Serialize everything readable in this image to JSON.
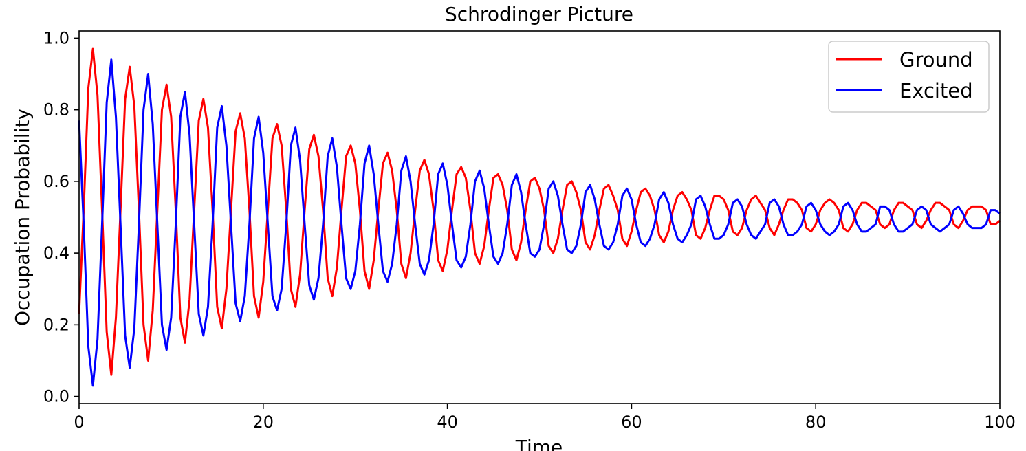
{
  "chart_data": {
    "type": "line",
    "title": "Schrodinger Picture",
    "xlabel": "Time",
    "ylabel": "Occupation Probability",
    "xlim": [
      0,
      100
    ],
    "ylim": [
      -0.02,
      1.02
    ],
    "xticks": [
      0,
      20,
      40,
      60,
      80,
      100
    ],
    "xtick_labels": [
      "0",
      "20",
      "40",
      "60",
      "80",
      "100"
    ],
    "yticks": [
      0.0,
      0.2,
      0.4,
      0.6,
      0.8,
      1.0
    ],
    "ytick_labels": [
      "0.0",
      "0.2",
      "0.4",
      "0.6",
      "0.8",
      "1.0"
    ],
    "grid": false,
    "legend_position": "top-right",
    "x": [
      0.0,
      0.5,
      1.0,
      1.5,
      2.0,
      2.5,
      3.0,
      3.5,
      4.0,
      4.5,
      5.0,
      5.5,
      6.0,
      6.5,
      7.0,
      7.5,
      8.0,
      8.5,
      9.0,
      9.5,
      10.0,
      10.5,
      11.0,
      11.5,
      12.0,
      12.5,
      13.0,
      13.5,
      14.0,
      14.5,
      15.0,
      15.5,
      16.0,
      16.5,
      17.0,
      17.5,
      18.0,
      18.5,
      19.0,
      19.5,
      20.0,
      20.5,
      21.0,
      21.5,
      22.0,
      22.5,
      23.0,
      23.5,
      24.0,
      24.5,
      25.0,
      25.5,
      26.0,
      26.5,
      27.0,
      27.5,
      28.0,
      28.5,
      29.0,
      29.5,
      30.0,
      30.5,
      31.0,
      31.5,
      32.0,
      32.5,
      33.0,
      33.5,
      34.0,
      34.5,
      35.0,
      35.5,
      36.0,
      36.5,
      37.0,
      37.5,
      38.0,
      38.5,
      39.0,
      39.5,
      40.0,
      40.5,
      41.0,
      41.5,
      42.0,
      42.5,
      43.0,
      43.5,
      44.0,
      44.5,
      45.0,
      45.5,
      46.0,
      46.5,
      47.0,
      47.5,
      48.0,
      48.5,
      49.0,
      49.5,
      50.0,
      50.5,
      51.0,
      51.5,
      52.0,
      52.5,
      53.0,
      53.5,
      54.0,
      54.5,
      55.0,
      55.5,
      56.0,
      56.5,
      57.0,
      57.5,
      58.0,
      58.5,
      59.0,
      59.5,
      60.0,
      60.5,
      61.0,
      61.5,
      62.0,
      62.5,
      63.0,
      63.5,
      64.0,
      64.5,
      65.0,
      65.5,
      66.0,
      66.5,
      67.0,
      67.5,
      68.0,
      68.5,
      69.0,
      69.5,
      70.0,
      70.5,
      71.0,
      71.5,
      72.0,
      72.5,
      73.0,
      73.5,
      74.0,
      74.5,
      75.0,
      75.5,
      76.0,
      76.5,
      77.0,
      77.5,
      78.0,
      78.5,
      79.0,
      79.5,
      80.0,
      80.5,
      81.0,
      81.5,
      82.0,
      82.5,
      83.0,
      83.5,
      84.0,
      84.5,
      85.0,
      85.5,
      86.0,
      86.5,
      87.0,
      87.5,
      88.0,
      88.5,
      89.0,
      89.5,
      90.0,
      90.5,
      91.0,
      91.5,
      92.0,
      92.5,
      93.0,
      93.5,
      94.0,
      94.5,
      95.0,
      95.5,
      96.0,
      96.5,
      97.0,
      97.5,
      98.0,
      98.5,
      99.0,
      99.5,
      100.0
    ],
    "series": [
      {
        "name": "Ground",
        "color": "#ff0000",
        "values": [
          0.23,
          0.52,
          0.86,
          0.97,
          0.84,
          0.52,
          0.18,
          0.06,
          0.22,
          0.52,
          0.83,
          0.92,
          0.81,
          0.52,
          0.2,
          0.1,
          0.24,
          0.52,
          0.8,
          0.87,
          0.78,
          0.52,
          0.22,
          0.15,
          0.27,
          0.52,
          0.77,
          0.83,
          0.75,
          0.52,
          0.25,
          0.19,
          0.3,
          0.52,
          0.74,
          0.79,
          0.72,
          0.52,
          0.28,
          0.22,
          0.32,
          0.52,
          0.72,
          0.76,
          0.7,
          0.52,
          0.3,
          0.25,
          0.34,
          0.52,
          0.69,
          0.73,
          0.67,
          0.52,
          0.33,
          0.28,
          0.36,
          0.52,
          0.67,
          0.7,
          0.65,
          0.52,
          0.35,
          0.3,
          0.38,
          0.52,
          0.65,
          0.68,
          0.63,
          0.52,
          0.37,
          0.33,
          0.4,
          0.52,
          0.63,
          0.66,
          0.62,
          0.52,
          0.38,
          0.35,
          0.41,
          0.52,
          0.62,
          0.64,
          0.61,
          0.52,
          0.4,
          0.37,
          0.42,
          0.52,
          0.61,
          0.62,
          0.59,
          0.52,
          0.41,
          0.38,
          0.43,
          0.52,
          0.6,
          0.61,
          0.58,
          0.52,
          0.42,
          0.4,
          0.44,
          0.52,
          0.59,
          0.6,
          0.57,
          0.52,
          0.43,
          0.41,
          0.45,
          0.52,
          0.58,
          0.59,
          0.56,
          0.52,
          0.44,
          0.42,
          0.46,
          0.52,
          0.57,
          0.58,
          0.56,
          0.52,
          0.45,
          0.43,
          0.46,
          0.52,
          0.56,
          0.57,
          0.55,
          0.52,
          0.45,
          0.44,
          0.47,
          0.52,
          0.56,
          0.56,
          0.55,
          0.52,
          0.46,
          0.45,
          0.47,
          0.52,
          0.55,
          0.56,
          0.54,
          0.52,
          0.47,
          0.45,
          0.48,
          0.52,
          0.55,
          0.55,
          0.54,
          0.52,
          0.47,
          0.46,
          0.48,
          0.52,
          0.54,
          0.55,
          0.54,
          0.52,
          0.47,
          0.46,
          0.48,
          0.52,
          0.54,
          0.54,
          0.53,
          0.52,
          0.48,
          0.47,
          0.48,
          0.52,
          0.54,
          0.54,
          0.53,
          0.52,
          0.48,
          0.47,
          0.49,
          0.52,
          0.54,
          0.54,
          0.53,
          0.52,
          0.48,
          0.47,
          0.49,
          0.52,
          0.53,
          0.53,
          0.53,
          0.52,
          0.48,
          0.48,
          0.49
        ]
      },
      {
        "name": "Excited",
        "color": "#0000ff",
        "values": [
          0.77,
          0.48,
          0.14,
          0.03,
          0.16,
          0.48,
          0.82,
          0.94,
          0.78,
          0.48,
          0.17,
          0.08,
          0.19,
          0.48,
          0.8,
          0.9,
          0.76,
          0.48,
          0.2,
          0.13,
          0.22,
          0.48,
          0.78,
          0.85,
          0.73,
          0.48,
          0.23,
          0.17,
          0.25,
          0.48,
          0.75,
          0.81,
          0.7,
          0.48,
          0.26,
          0.21,
          0.28,
          0.48,
          0.72,
          0.78,
          0.68,
          0.48,
          0.28,
          0.24,
          0.3,
          0.48,
          0.7,
          0.75,
          0.66,
          0.48,
          0.31,
          0.27,
          0.33,
          0.48,
          0.67,
          0.72,
          0.64,
          0.48,
          0.33,
          0.3,
          0.35,
          0.48,
          0.65,
          0.7,
          0.62,
          0.48,
          0.35,
          0.32,
          0.37,
          0.48,
          0.63,
          0.67,
          0.6,
          0.48,
          0.37,
          0.34,
          0.38,
          0.48,
          0.62,
          0.65,
          0.59,
          0.48,
          0.38,
          0.36,
          0.39,
          0.48,
          0.6,
          0.63,
          0.58,
          0.48,
          0.39,
          0.37,
          0.4,
          0.48,
          0.59,
          0.62,
          0.57,
          0.48,
          0.4,
          0.39,
          0.41,
          0.48,
          0.58,
          0.6,
          0.56,
          0.48,
          0.41,
          0.4,
          0.42,
          0.48,
          0.57,
          0.59,
          0.55,
          0.48,
          0.42,
          0.41,
          0.43,
          0.48,
          0.56,
          0.58,
          0.55,
          0.48,
          0.43,
          0.42,
          0.44,
          0.48,
          0.55,
          0.57,
          0.54,
          0.48,
          0.44,
          0.43,
          0.45,
          0.48,
          0.55,
          0.56,
          0.53,
          0.48,
          0.44,
          0.44,
          0.45,
          0.48,
          0.54,
          0.55,
          0.53,
          0.48,
          0.45,
          0.44,
          0.46,
          0.48,
          0.54,
          0.55,
          0.53,
          0.48,
          0.45,
          0.45,
          0.46,
          0.48,
          0.53,
          0.54,
          0.52,
          0.48,
          0.46,
          0.45,
          0.46,
          0.48,
          0.53,
          0.54,
          0.52,
          0.48,
          0.46,
          0.46,
          0.47,
          0.48,
          0.53,
          0.53,
          0.52,
          0.48,
          0.46,
          0.46,
          0.47,
          0.48,
          0.52,
          0.53,
          0.52,
          0.48,
          0.47,
          0.46,
          0.47,
          0.48,
          0.52,
          0.53,
          0.51,
          0.48,
          0.47,
          0.47,
          0.47,
          0.48,
          0.52,
          0.52,
          0.51
        ]
      }
    ]
  }
}
